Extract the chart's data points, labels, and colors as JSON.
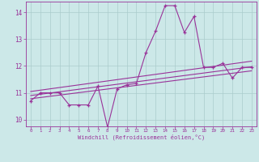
{
  "xlabel": "Windchill (Refroidissement éolien,°C)",
  "background_color": "#cce8e8",
  "line_color": "#993399",
  "grid_color": "#aacccc",
  "xlim": [
    -0.5,
    23.5
  ],
  "ylim": [
    9.75,
    14.4
  ],
  "xticks": [
    0,
    1,
    2,
    3,
    4,
    5,
    6,
    7,
    8,
    9,
    10,
    11,
    12,
    13,
    14,
    15,
    16,
    17,
    18,
    19,
    20,
    21,
    22,
    23
  ],
  "yticks": [
    10,
    11,
    12,
    13,
    14
  ],
  "main_data": [
    [
      0,
      10.7
    ],
    [
      1,
      11.0
    ],
    [
      2,
      11.0
    ],
    [
      3,
      11.0
    ],
    [
      4,
      10.55
    ],
    [
      5,
      10.55
    ],
    [
      6,
      10.55
    ],
    [
      7,
      11.25
    ],
    [
      8,
      9.72
    ],
    [
      9,
      11.15
    ],
    [
      10,
      11.3
    ],
    [
      11,
      11.35
    ],
    [
      12,
      12.5
    ],
    [
      13,
      13.3
    ],
    [
      14,
      14.25
    ],
    [
      15,
      14.25
    ],
    [
      16,
      13.25
    ],
    [
      17,
      13.85
    ],
    [
      18,
      11.95
    ],
    [
      19,
      11.95
    ],
    [
      20,
      12.1
    ],
    [
      21,
      11.55
    ],
    [
      22,
      11.95
    ],
    [
      23,
      11.95
    ]
  ],
  "reg_line1": [
    [
      0,
      10.78
    ],
    [
      23,
      11.82
    ]
  ],
  "reg_line2": [
    [
      0,
      10.9
    ],
    [
      23,
      11.97
    ]
  ],
  "reg_line3": [
    [
      0,
      11.05
    ],
    [
      23,
      12.18
    ]
  ]
}
